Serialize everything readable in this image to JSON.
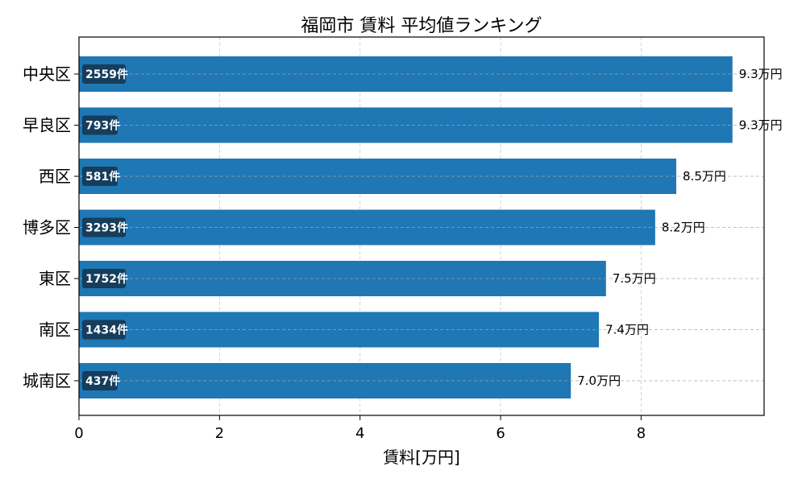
{
  "chart_data": {
    "type": "bar",
    "orientation": "horizontal",
    "title": "福岡市 賃料 平均値ランキング",
    "xlabel": "賃料[万円]",
    "ylabel": "",
    "xlim": [
      0,
      9.75
    ],
    "xticks": [
      0,
      2,
      4,
      6,
      8
    ],
    "grid": true,
    "bar_color": "#1f77b4",
    "count_badge_color": "#163d5c",
    "categories": [
      "中央区",
      "早良区",
      "西区",
      "博多区",
      "東区",
      "南区",
      "城南区"
    ],
    "values": [
      9.3,
      9.3,
      8.5,
      8.2,
      7.5,
      7.4,
      7.0
    ],
    "value_labels": [
      "9.3万円",
      "9.3万円",
      "8.5万円",
      "8.2万円",
      "7.5万円",
      "7.4万円",
      "7.0万円"
    ],
    "count_labels": [
      "2559件",
      "793件",
      "581件",
      "3293件",
      "1752件",
      "1434件",
      "437件"
    ]
  }
}
